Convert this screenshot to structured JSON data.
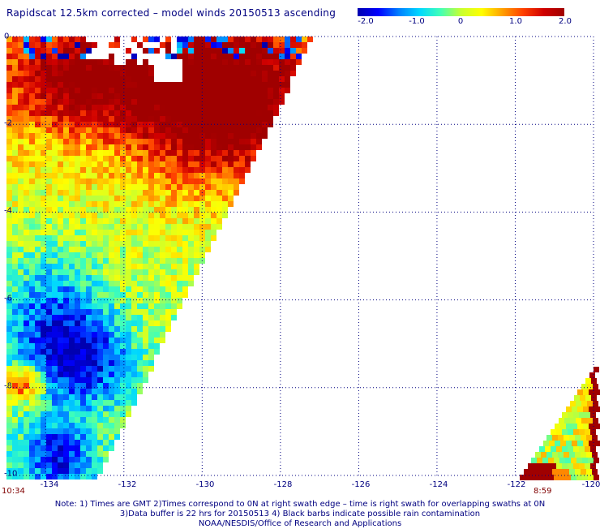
{
  "title": "Rapidscat 12.5km corrected – model winds 20150513 ascending",
  "colorbar": {
    "colors": [
      "#0000b0",
      "#0000ff",
      "#0080ff",
      "#00d8ff",
      "#40ffb8",
      "#c8ff30",
      "#ffff00",
      "#ffa000",
      "#ff4000",
      "#d00000",
      "#a00000"
    ],
    "ticks": [
      {
        "value": -2.0,
        "label": "-2.0"
      },
      {
        "value": -1.0,
        "label": "-1.0"
      },
      {
        "value": 0,
        "label": "0"
      },
      {
        "value": 1.0,
        "label": "1.0"
      },
      {
        "value": 2.0,
        "label": "2.0"
      }
    ],
    "range": [
      -2.0,
      2.0
    ]
  },
  "map": {
    "lon_range": [
      -135,
      -120
    ],
    "lat_range": [
      -10,
      0
    ],
    "lon_ticks": [
      "-134",
      "-132",
      "-130",
      "-128",
      "-126",
      "-124",
      "-122",
      "-120"
    ],
    "lon_tick_values": [
      -134,
      -132,
      -130,
      -128,
      -126,
      -124,
      -122,
      -120
    ],
    "lat_ticks": [
      "0",
      "-2",
      "-4",
      "-6",
      "-8",
      "-10"
    ],
    "lat_tick_values": [
      0,
      -2,
      -4,
      -6,
      -8,
      -10
    ],
    "grid_lines": "dotted",
    "left_time": "10:34",
    "right_time": "8:59"
  },
  "notes": [
    "Note: 1) Times are GMT 2)Times correspond to 0N at right swath edge – time is right swath for overlapping swaths at 0N",
    "3)Data buffer is 22 hrs for 20150513 4) Black barbs indicate possible rain contamination",
    "NOAA/NESDIS/Office of Research and Applications"
  ]
}
